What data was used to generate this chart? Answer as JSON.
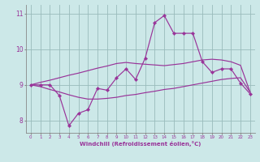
{
  "background_color": "#cce8e8",
  "line_color": "#993399",
  "grid_color": "#99bbbb",
  "x_values": [
    0,
    1,
    2,
    3,
    4,
    5,
    6,
    7,
    8,
    9,
    10,
    11,
    12,
    13,
    14,
    15,
    16,
    17,
    18,
    19,
    20,
    21,
    22,
    23
  ],
  "line1": [
    9.0,
    9.0,
    9.0,
    8.7,
    7.85,
    8.2,
    8.3,
    8.9,
    8.85,
    9.2,
    9.45,
    9.15,
    9.75,
    10.75,
    10.95,
    10.45,
    10.45,
    10.45,
    9.65,
    9.35,
    9.45,
    9.45,
    9.05,
    8.75
  ],
  "line2": [
    9.0,
    9.07,
    9.13,
    9.2,
    9.27,
    9.33,
    9.4,
    9.47,
    9.53,
    9.6,
    9.63,
    9.6,
    9.58,
    9.56,
    9.54,
    9.57,
    9.6,
    9.65,
    9.7,
    9.72,
    9.7,
    9.65,
    9.55,
    8.8
  ],
  "line3": [
    9.0,
    8.95,
    8.87,
    8.8,
    8.72,
    8.65,
    8.6,
    8.6,
    8.62,
    8.65,
    8.7,
    8.73,
    8.78,
    8.82,
    8.87,
    8.9,
    8.95,
    9.0,
    9.05,
    9.1,
    9.15,
    9.18,
    9.2,
    8.8
  ],
  "xlabel": "Windchill (Refroidissement éolien,°C)",
  "ylim": [
    7.65,
    11.25
  ],
  "yticks": [
    8,
    9,
    10,
    11
  ],
  "xtick_labels": [
    "0",
    "1",
    "2",
    "3",
    "4",
    "5",
    "6",
    "7",
    "8",
    "9",
    "10",
    "11",
    "12",
    "13",
    "14",
    "15",
    "16",
    "17",
    "18",
    "19",
    "20",
    "21",
    "22",
    "23"
  ]
}
